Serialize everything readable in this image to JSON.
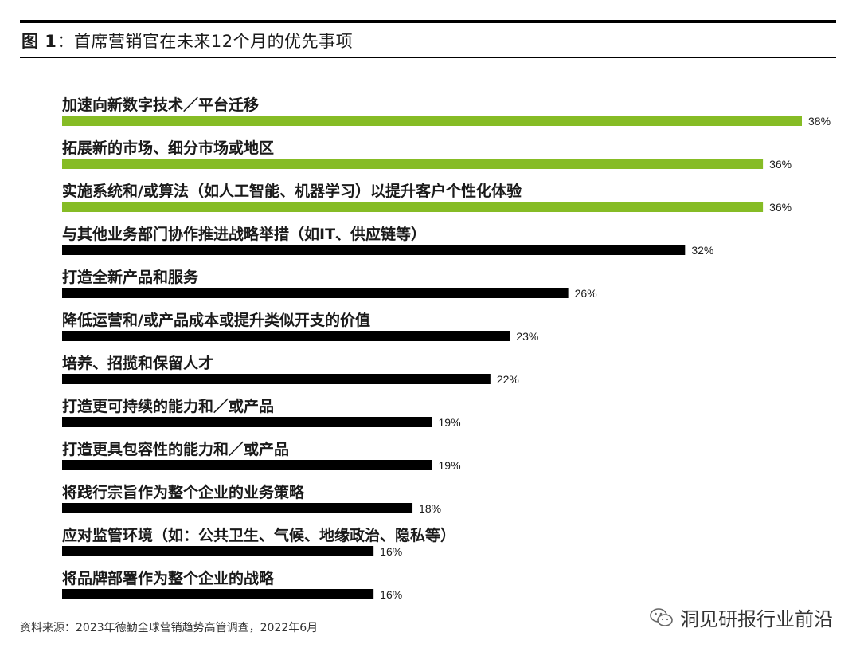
{
  "figure": {
    "label": "图 1",
    "colon": "：",
    "title": "首席营销官在未来12个月的优先事项"
  },
  "chart_data": {
    "type": "bar",
    "orientation": "horizontal",
    "categories": [
      "加速向新数字技术／平台迁移",
      "拓展新的市场、细分市场或地区",
      "实施系统和/或算法（如人工智能、机器学习）以提升客户个性化体验",
      "与其他业务部门协作推进战略举措（如IT、供应链等）",
      "打造全新产品和服务",
      "降低运营和/或产品成本或提升类似开支的价值",
      "培养、招揽和保留人才",
      "打造更可持续的能力和／或产品",
      "打造更具包容性的能力和／或产品",
      "将践行宗旨作为整个企业的业务策略",
      "应对监管环境（如：公共卫生、气候、地缘政治、隐私等）",
      "将品牌部署作为整个企业的战略"
    ],
    "values": [
      38,
      36,
      36,
      32,
      26,
      23,
      22,
      19,
      19,
      18,
      16,
      16
    ],
    "value_labels": [
      "38%",
      "36%",
      "36%",
      "32%",
      "26%",
      "23%",
      "22%",
      "19%",
      "19%",
      "18%",
      "16%",
      "16%"
    ],
    "highlighted_count": 3,
    "colors": {
      "highlight": "#86bc25",
      "default": "#000000"
    },
    "xlim": [
      0,
      38
    ],
    "grid": false,
    "legend": "none"
  },
  "source": "资料来源：2023年德勤全球营销趋势高管调查，2022年6月",
  "watermark": {
    "text": "洞见研报行业前沿",
    "icon": "wechat-icon"
  }
}
